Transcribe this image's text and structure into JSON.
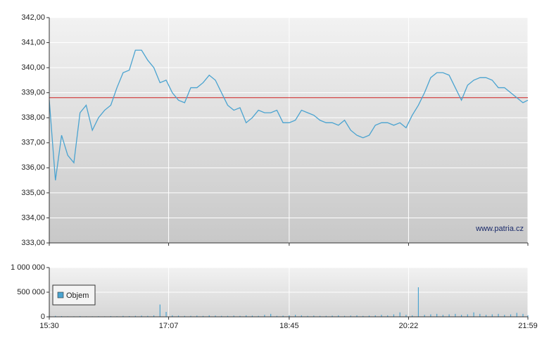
{
  "chart_data": [
    {
      "type": "line",
      "x": [
        "15:30",
        "15:35",
        "15:40",
        "15:45",
        "15:50",
        "15:55",
        "16:00",
        "16:05",
        "16:10",
        "16:15",
        "16:20",
        "16:25",
        "16:30",
        "16:35",
        "16:40",
        "16:45",
        "16:50",
        "16:55",
        "17:00",
        "17:05",
        "17:10",
        "17:15",
        "17:20",
        "17:25",
        "17:30",
        "17:35",
        "17:40",
        "17:45",
        "17:50",
        "17:55",
        "18:00",
        "18:05",
        "18:10",
        "18:15",
        "18:20",
        "18:25",
        "18:30",
        "18:35",
        "18:40",
        "18:45",
        "18:50",
        "18:55",
        "19:00",
        "19:05",
        "19:10",
        "19:15",
        "19:20",
        "19:25",
        "19:30",
        "19:35",
        "19:40",
        "19:45",
        "19:50",
        "19:55",
        "20:00",
        "20:05",
        "20:10",
        "20:15",
        "20:20",
        "20:25",
        "20:30",
        "20:35",
        "20:40",
        "20:45",
        "20:50",
        "20:55",
        "21:00",
        "21:05",
        "21:10",
        "21:15",
        "21:20",
        "21:25",
        "21:30",
        "21:35",
        "21:40",
        "21:45",
        "21:50",
        "21:55",
        "21:59"
      ],
      "values": [
        338.7,
        335.5,
        337.3,
        336.5,
        336.2,
        338.2,
        338.5,
        337.5,
        338.0,
        338.3,
        338.5,
        339.2,
        339.8,
        339.9,
        340.7,
        340.7,
        340.3,
        340.0,
        339.4,
        339.5,
        339.0,
        338.7,
        338.6,
        339.2,
        339.2,
        339.4,
        339.7,
        339.5,
        339.0,
        338.5,
        338.3,
        338.4,
        337.8,
        338.0,
        338.3,
        338.2,
        338.2,
        338.3,
        337.8,
        337.8,
        337.9,
        338.3,
        338.2,
        338.1,
        337.9,
        337.8,
        337.8,
        337.7,
        337.9,
        337.5,
        337.3,
        337.2,
        337.3,
        337.7,
        337.8,
        337.8,
        337.7,
        337.8,
        337.6,
        338.1,
        338.5,
        339.0,
        339.6,
        339.8,
        339.8,
        339.7,
        339.2,
        338.7,
        339.3,
        339.5,
        339.6,
        339.6,
        339.5,
        339.2,
        339.2,
        339.0,
        338.8,
        338.6,
        338.7
      ],
      "color": "#4aa3d0",
      "reference_line": 338.8,
      "reference_color": "#d02020",
      "ylim": [
        333,
        342
      ],
      "yticks": [
        {
          "value": 333,
          "label": "333,00"
        },
        {
          "value": 334,
          "label": "334,00"
        },
        {
          "value": 335,
          "label": "335,00"
        },
        {
          "value": 336,
          "label": "336,00"
        },
        {
          "value": 337,
          "label": "337,00"
        },
        {
          "value": 338,
          "label": "338,00"
        },
        {
          "value": 339,
          "label": "339,00"
        },
        {
          "value": 340,
          "label": "340,00"
        },
        {
          "value": 341,
          "label": "341,00"
        },
        {
          "value": 342,
          "label": "342,00"
        }
      ],
      "xticks": [
        "15:30",
        "17:07",
        "18:45",
        "20:22",
        "21:59"
      ],
      "watermark": "www.patria.cz",
      "grid": true
    },
    {
      "type": "bar",
      "name": "Objem",
      "color": "#4aa3d0",
      "x": [
        "15:30",
        "15:35",
        "15:40",
        "15:45",
        "15:50",
        "15:55",
        "16:00",
        "16:05",
        "16:10",
        "16:15",
        "16:20",
        "16:25",
        "16:30",
        "16:35",
        "16:40",
        "16:45",
        "16:50",
        "16:55",
        "17:00",
        "17:05",
        "17:10",
        "17:15",
        "17:20",
        "17:25",
        "17:30",
        "17:35",
        "17:40",
        "17:45",
        "17:50",
        "17:55",
        "18:00",
        "18:05",
        "18:10",
        "18:15",
        "18:20",
        "18:25",
        "18:30",
        "18:35",
        "18:40",
        "18:45",
        "18:50",
        "18:55",
        "19:00",
        "19:05",
        "19:10",
        "19:15",
        "19:20",
        "19:25",
        "19:30",
        "19:35",
        "19:40",
        "19:45",
        "19:50",
        "19:55",
        "20:00",
        "20:05",
        "20:10",
        "20:15",
        "20:20",
        "20:25",
        "20:30",
        "20:35",
        "20:40",
        "20:45",
        "20:50",
        "20:55",
        "21:00",
        "21:05",
        "21:10",
        "21:15",
        "21:20",
        "21:25",
        "21:30",
        "21:35",
        "21:40",
        "21:45",
        "21:50",
        "21:55",
        "21:59"
      ],
      "values": [
        30000,
        20000,
        15000,
        10000,
        10000,
        15000,
        10000,
        10000,
        12000,
        10000,
        15000,
        12000,
        20000,
        15000,
        20000,
        25000,
        20000,
        30000,
        250000,
        100000,
        30000,
        25000,
        20000,
        20000,
        25000,
        20000,
        30000,
        25000,
        20000,
        20000,
        25000,
        20000,
        30000,
        25000,
        20000,
        40000,
        60000,
        20000,
        25000,
        30000,
        40000,
        30000,
        20000,
        25000,
        20000,
        20000,
        25000,
        30000,
        20000,
        25000,
        30000,
        20000,
        25000,
        30000,
        40000,
        30000,
        50000,
        90000,
        40000,
        30000,
        600000,
        40000,
        50000,
        60000,
        40000,
        50000,
        60000,
        40000,
        50000,
        90000,
        60000,
        40000,
        50000,
        60000,
        40000,
        50000,
        80000,
        60000,
        30000
      ],
      "ylim": [
        0,
        1000000
      ],
      "yticks": [
        0,
        {
          "value": 500000,
          "label": "500 000"
        },
        {
          "value": 1000000,
          "label": "1 000 000"
        }
      ],
      "xticks": [
        "15:30",
        "17:07",
        "18:45",
        "20:22",
        "21:59"
      ],
      "legend": "top-left",
      "grid": true
    }
  ]
}
